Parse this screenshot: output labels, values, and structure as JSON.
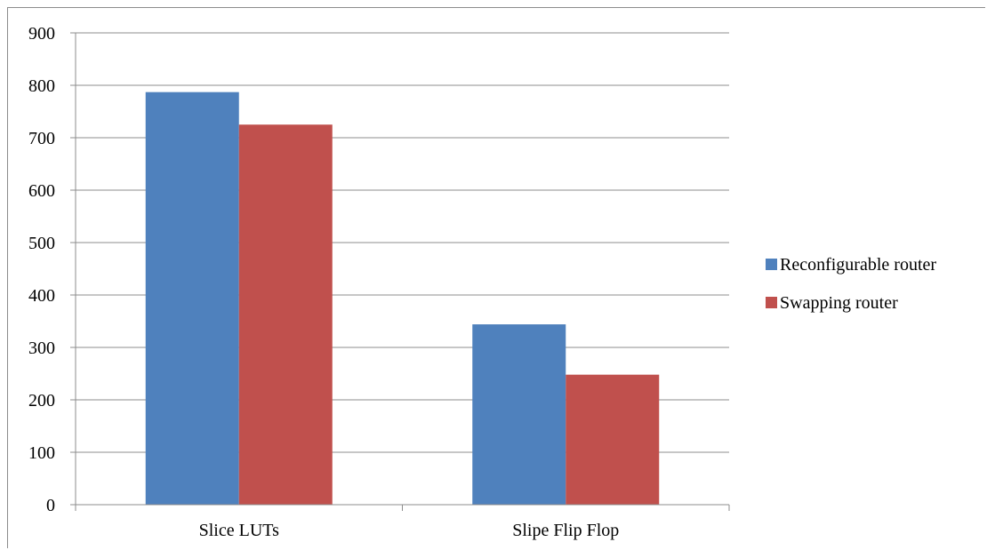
{
  "chart_data": {
    "type": "bar",
    "categories": [
      "Slice LUTs",
      "Slipe Flip Flop"
    ],
    "series": [
      {
        "name": "Reconfigurable router",
        "values": [
          787,
          344
        ],
        "color": "#4f81bd"
      },
      {
        "name": "Swapping router",
        "values": [
          725,
          248
        ],
        "color": "#c0504d"
      }
    ],
    "yticks": [
      "0",
      "100",
      "200",
      "300",
      "400",
      "500",
      "600",
      "700",
      "800",
      "900"
    ],
    "ylim": [
      0,
      900
    ],
    "grid": true,
    "legend_position": "right",
    "title": "",
    "xlabel": "",
    "ylabel": ""
  }
}
